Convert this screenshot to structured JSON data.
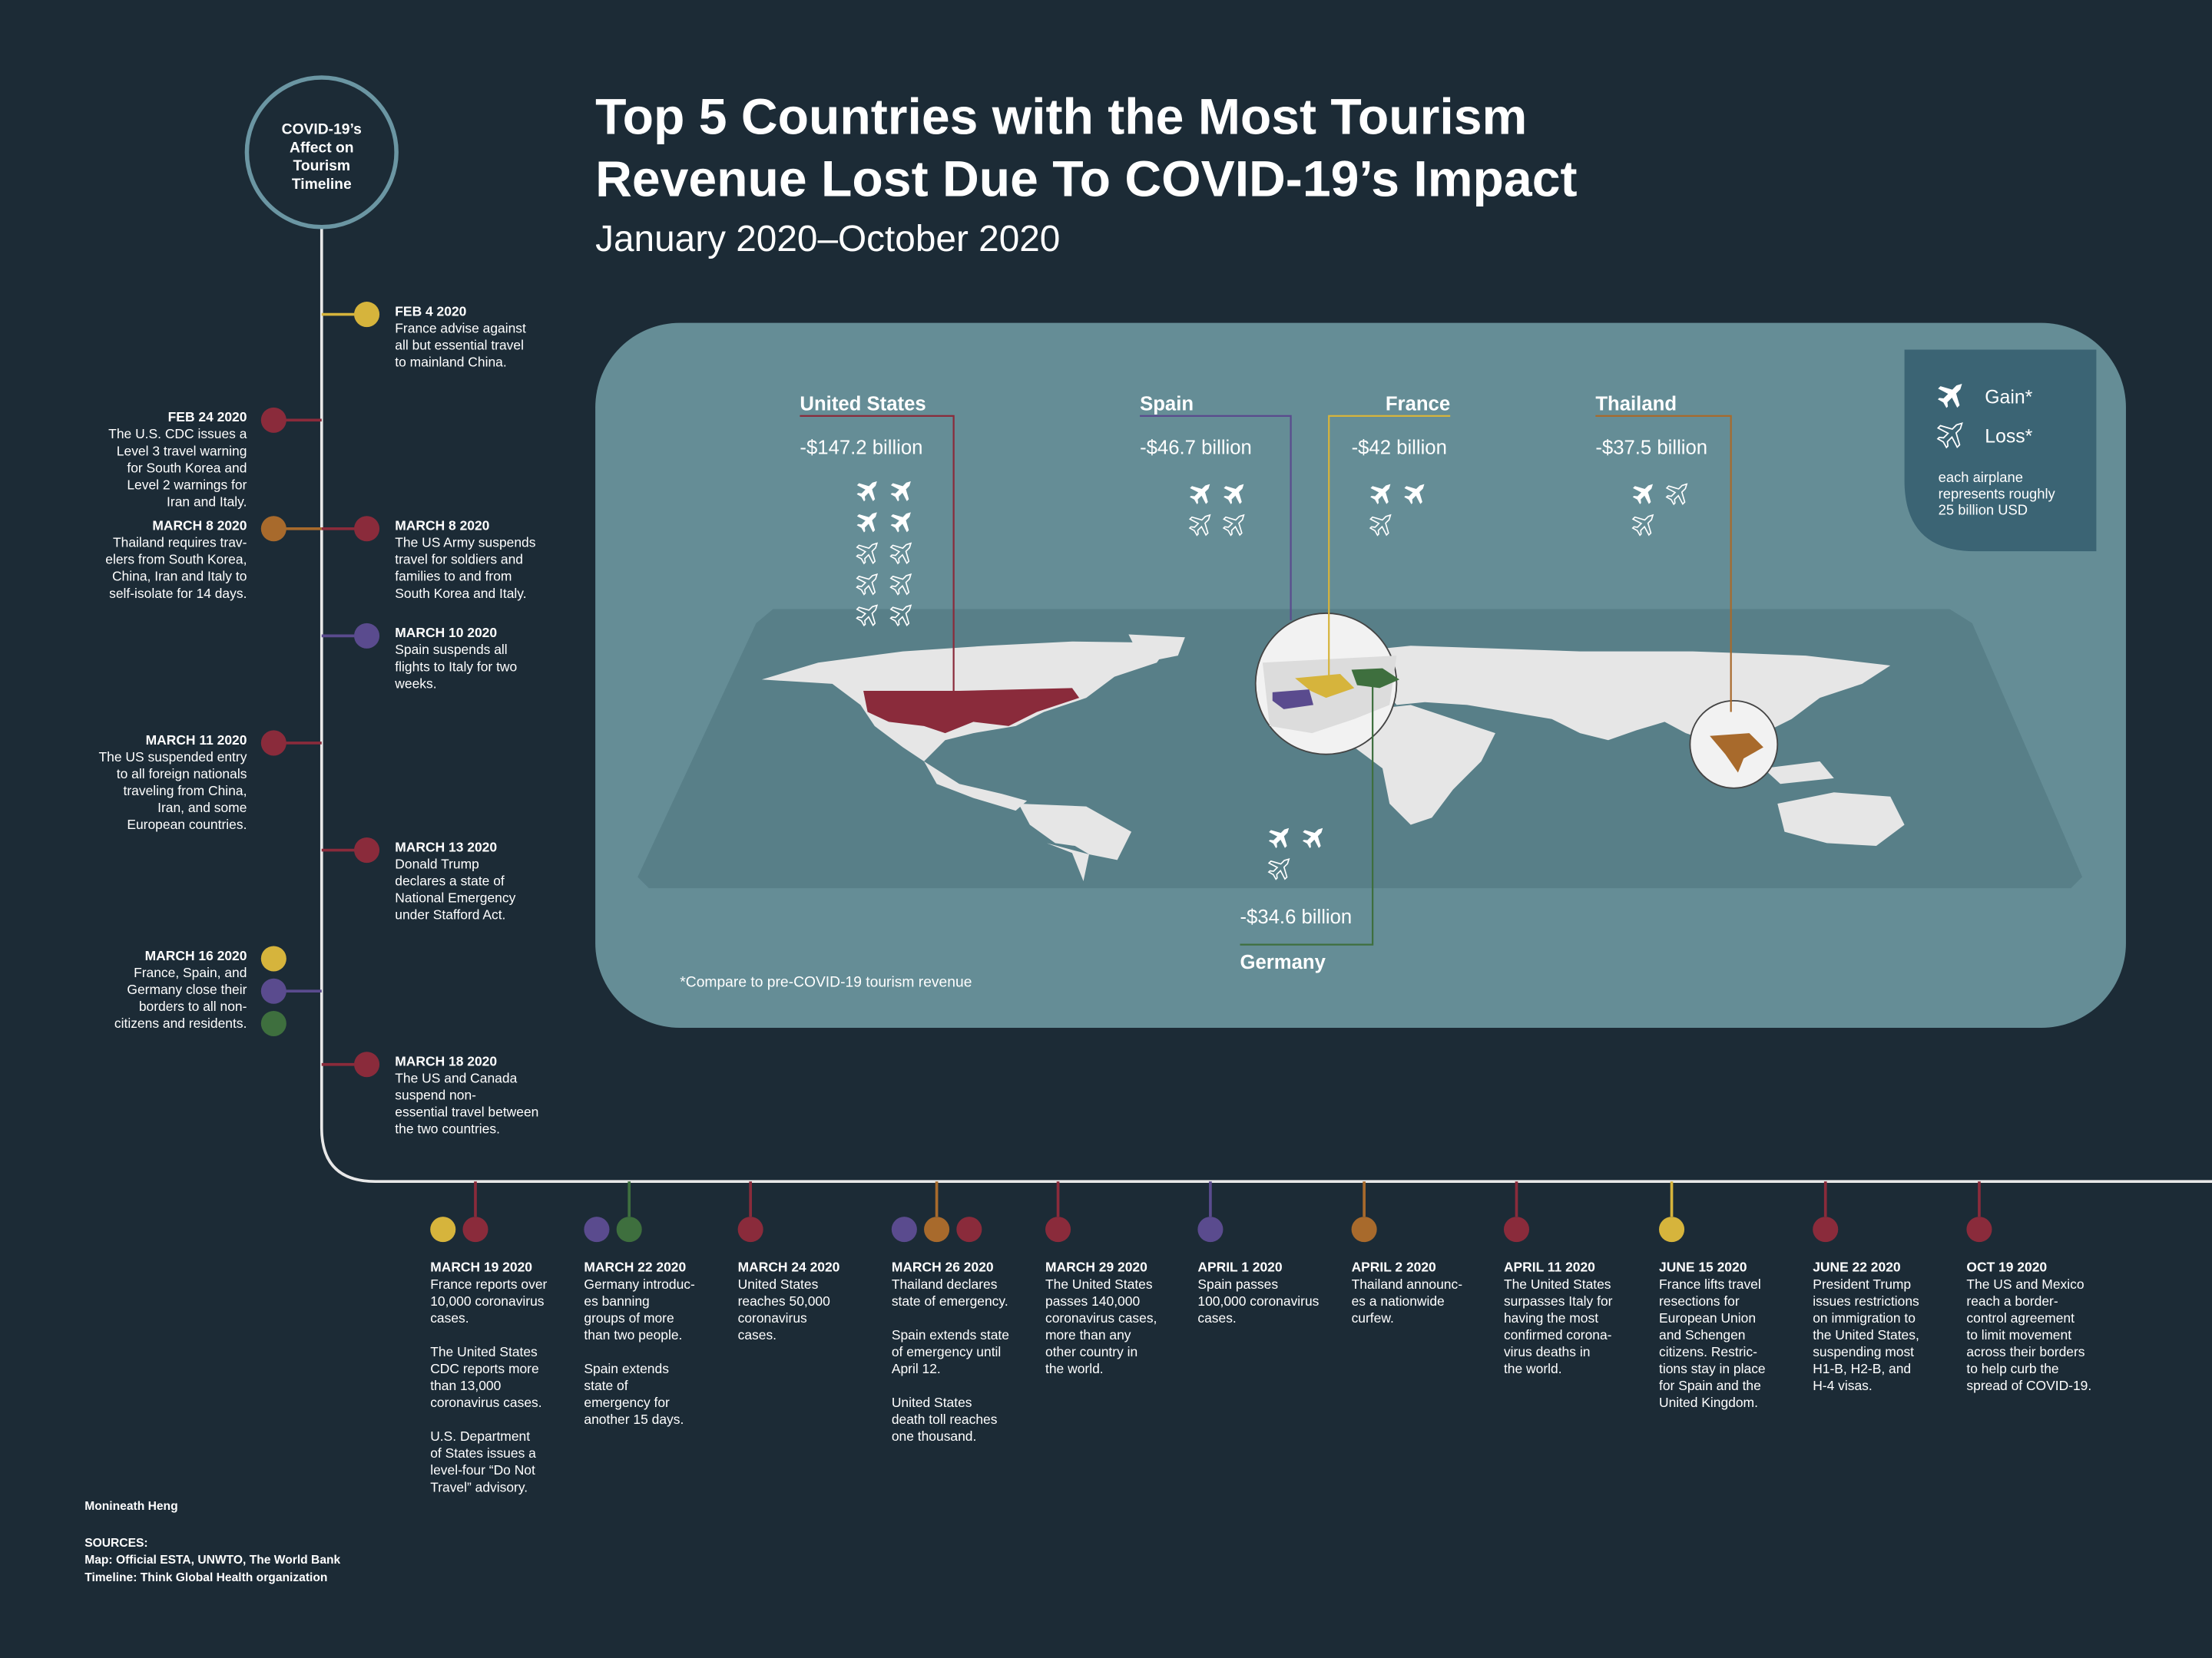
{
  "header": {
    "title": [
      "Top 5 Countries with the Most Tourism",
      "Revenue Lost Due To COVID-19’s Impact"
    ],
    "subtitle": "January 2020–October 2020"
  },
  "timeline_badge": [
    "COVID-19’s",
    "Affect on",
    "Tourism",
    "Timeline"
  ],
  "map": {
    "countries": [
      {
        "name": "United States",
        "revenue": "-$147.2 billion",
        "color": "#8a2b3b",
        "gain_planes": 4,
        "loss_planes": 6
      },
      {
        "name": "Spain",
        "revenue": "-$46.7 billion",
        "color": "#5a4b8e",
        "gain_planes": 2,
        "loss_planes": 2
      },
      {
        "name": "France",
        "revenue": "-$42 billion",
        "color": "#d6b43c",
        "gain_planes": 2,
        "loss_planes": 1
      },
      {
        "name": "Thailand",
        "revenue": "-$37.5 billion",
        "color": "#a86a2c",
        "gain_planes": 1,
        "loss_planes": 2
      },
      {
        "name": "Germany",
        "revenue": "-$34.6 billion",
        "color": "#3e6f3e",
        "gain_planes": 2,
        "loss_planes": 1
      }
    ],
    "legend": {
      "gain": "Gain*",
      "loss": "Loss*",
      "note": [
        "each airplane",
        "represents roughly",
        "25 billion USD"
      ]
    },
    "footnote": "*Compare to pre-COVID-19 tourism revenue"
  },
  "timeline": {
    "vertical": [
      {
        "side": "right",
        "date": "FEB 4 2020",
        "colors": [
          "#d6b43c"
        ],
        "lines": [
          "France advise against",
          "all but essential travel",
          "to mainland China."
        ]
      },
      {
        "side": "left",
        "date": "FEB 24 2020",
        "colors": [
          "#8a2b3b"
        ],
        "lines": [
          "The U.S. CDC issues a",
          "Level 3 travel warning",
          "for South Korea and",
          "Level 2 warnings for",
          "Iran and Italy."
        ]
      },
      {
        "side": "left",
        "date": "MARCH 8 2020",
        "colors": [
          "#a86a2c"
        ],
        "lines": [
          "Thailand requires trav-",
          "elers from South Korea,",
          "China, Iran and Italy to",
          "self-isolate for 14 days."
        ]
      },
      {
        "side": "right",
        "date": "MARCH 8 2020",
        "colors": [
          "#8a2b3b"
        ],
        "lines": [
          "The US Army suspends",
          "travel for soldiers and",
          "families to and from",
          "South Korea and Italy."
        ]
      },
      {
        "side": "right",
        "date": "MARCH 10 2020",
        "colors": [
          "#5a4b8e"
        ],
        "lines": [
          "Spain suspends all",
          "flights to Italy for two",
          "weeks."
        ]
      },
      {
        "side": "left",
        "date": "MARCH 11 2020",
        "colors": [
          "#8a2b3b"
        ],
        "lines": [
          "The US suspended entry",
          "to all foreign nationals",
          "traveling from China,",
          "Iran, and some",
          "European countries."
        ]
      },
      {
        "side": "right",
        "date": "MARCH 13 2020",
        "colors": [
          "#8a2b3b"
        ],
        "lines": [
          "Donald Trump",
          "declares a state of",
          "National Emergency",
          "under Stafford Act."
        ]
      },
      {
        "side": "left",
        "date": "MARCH 16 2020",
        "colors": [
          "#d6b43c",
          "#5a4b8e",
          "#3e6f3e"
        ],
        "lines": [
          "France, Spain, and",
          "Germany close their",
          "borders to all non-",
          "citizens and residents."
        ]
      },
      {
        "side": "right",
        "date": "MARCH 18 2020",
        "colors": [
          "#8a2b3b"
        ],
        "lines": [
          "The US and Canada",
          "suspend non-",
          "essential travel between",
          "the two countries."
        ]
      }
    ],
    "horizontal": [
      {
        "date": "MARCH 19 2020",
        "colors": [
          "#d6b43c",
          "#8a2b3b"
        ],
        "paragraphs": [
          [
            "France reports over",
            "10,000 coronavirus",
            "cases."
          ],
          [
            "The United States",
            "CDC reports more",
            "than 13,000",
            "coronavirus cases."
          ],
          [
            "U.S. Department",
            "of States issues a",
            "level-four “Do Not",
            "Travel” advisory."
          ]
        ]
      },
      {
        "date": "MARCH 22 2020",
        "colors": [
          "#5a4b8e",
          "#3e6f3e"
        ],
        "paragraphs": [
          [
            "Germany introduc-",
            "es banning",
            "groups of more",
            "than two people."
          ],
          [
            "Spain extends",
            "state of",
            "emergency for",
            "another 15 days."
          ]
        ]
      },
      {
        "date": "MARCH 24 2020",
        "colors": [
          "#8a2b3b"
        ],
        "paragraphs": [
          [
            "United States",
            "reaches 50,000",
            "coronavirus",
            "cases."
          ]
        ]
      },
      {
        "date": "MARCH 26 2020",
        "colors": [
          "#5a4b8e",
          "#a86a2c",
          "#8a2b3b"
        ],
        "paragraphs": [
          [
            "Thailand declares",
            "state of emergency."
          ],
          [
            "Spain extends state",
            "of emergency until",
            "April 12."
          ],
          [
            "United States",
            "death toll reaches",
            "one thousand."
          ]
        ]
      },
      {
        "date": "MARCH 29 2020",
        "colors": [
          "#8a2b3b"
        ],
        "paragraphs": [
          [
            "The United States",
            "passes 140,000",
            "coronavirus cases,",
            "more than any",
            "other country in",
            "the world."
          ]
        ]
      },
      {
        "date": "APRIL 1 2020",
        "colors": [
          "#5a4b8e"
        ],
        "paragraphs": [
          [
            "Spain passes",
            "100,000 coronavirus",
            "cases."
          ]
        ]
      },
      {
        "date": "APRIL 2 2020",
        "colors": [
          "#a86a2c"
        ],
        "paragraphs": [
          [
            "Thailand announc-",
            "es a nationwide",
            "curfew."
          ]
        ]
      },
      {
        "date": "APRIL 11 2020",
        "colors": [
          "#8a2b3b"
        ],
        "paragraphs": [
          [
            "The United States",
            "surpasses Italy for",
            "having the most",
            "confirmed corona-",
            "virus deaths in",
            "the world."
          ]
        ]
      },
      {
        "date": "JUNE 15 2020",
        "colors": [
          "#d6b43c"
        ],
        "paragraphs": [
          [
            "France lifts travel",
            "resections for",
            "European Union",
            "and Schengen",
            "citizens. Restric-",
            "tions stay in place",
            "for Spain and the",
            "United Kingdom."
          ]
        ]
      },
      {
        "date": "JUNE 22 2020",
        "colors": [
          "#8a2b3b"
        ],
        "paragraphs": [
          [
            "President Trump",
            "issues restrictions",
            "on immigration to",
            "the United States,",
            "suspending most",
            "H1-B, H2-B, and",
            "H-4 visas."
          ]
        ]
      },
      {
        "date": "OCT 19 2020",
        "colors": [
          "#8a2b3b"
        ],
        "paragraphs": [
          [
            "The US and Mexico",
            "reach a border-",
            "control agreement",
            "to limit movement",
            "across their borders",
            "to help curb the",
            "spread of COVID-19."
          ]
        ]
      }
    ]
  },
  "credits": {
    "author": "Monineath Heng",
    "sources_heading": "SOURCES:",
    "sources": [
      "Map: Official ESTA, UNWTO, The World Bank",
      "Timeline: Think Global Health organization"
    ]
  }
}
